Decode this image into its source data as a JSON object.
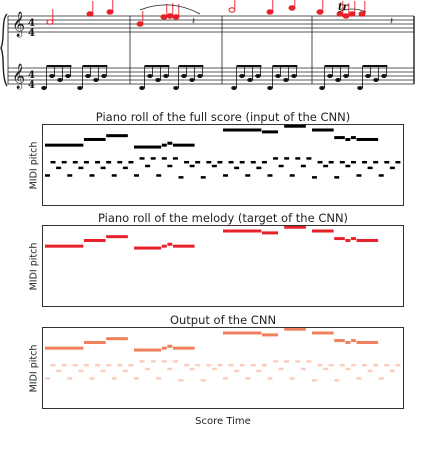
{
  "score": {
    "time_signature_top": "4",
    "time_signature_bottom": "4",
    "trill_mark": "tr",
    "melody_color": "#e8202a",
    "accompaniment_color": "#111111"
  },
  "panels": [
    {
      "title": "Piano roll of the full score (input of the CNN)",
      "ylabel": "MIDI pitch",
      "kind": "full"
    },
    {
      "title": "Piano roll of the melody (target of the CNN)",
      "ylabel": "MIDI pitch",
      "kind": "melody"
    },
    {
      "title": "Output of the CNN",
      "ylabel": "MIDI pitch",
      "kind": "output"
    }
  ],
  "xlabel": "Score Time",
  "colors": {
    "full": "#000000",
    "melody": "#e8202a",
    "output_strong": "#f07f5c",
    "output_weak": "#f9c9b5"
  },
  "chart_data": {
    "type": "heatmap",
    "xlabel": "Score Time",
    "ylabel": "MIDI pitch",
    "time_range": [
      0,
      64
    ],
    "pitch_range": [
      46,
      84
    ],
    "melody_notes": [
      {
        "start": 0,
        "end": 7,
        "pitch": 76
      },
      {
        "start": 7,
        "end": 11,
        "pitch": 79
      },
      {
        "start": 11,
        "end": 15,
        "pitch": 81
      },
      {
        "start": 16,
        "end": 21,
        "pitch": 75
      },
      {
        "start": 21,
        "end": 22,
        "pitch": 76
      },
      {
        "start": 22,
        "end": 23,
        "pitch": 77
      },
      {
        "start": 23,
        "end": 27,
        "pitch": 76
      },
      {
        "start": 32,
        "end": 39,
        "pitch": 84
      },
      {
        "start": 39,
        "end": 42,
        "pitch": 83
      },
      {
        "start": 43,
        "end": 47,
        "pitch": 86
      },
      {
        "start": 48,
        "end": 52,
        "pitch": 84
      },
      {
        "start": 52,
        "end": 54,
        "pitch": 80
      },
      {
        "start": 54,
        "end": 55,
        "pitch": 79
      },
      {
        "start": 55,
        "end": 56,
        "pitch": 80
      },
      {
        "start": 56,
        "end": 60,
        "pitch": 79
      }
    ],
    "accompaniment_notes": [
      {
        "start": 0,
        "end": 1,
        "pitch": 60
      },
      {
        "start": 1,
        "end": 2,
        "pitch": 67
      },
      {
        "start": 2,
        "end": 3,
        "pitch": 64
      },
      {
        "start": 3,
        "end": 4,
        "pitch": 67
      },
      {
        "start": 4,
        "end": 5,
        "pitch": 60
      },
      {
        "start": 5,
        "end": 6,
        "pitch": 67
      },
      {
        "start": 6,
        "end": 7,
        "pitch": 64
      },
      {
        "start": 7,
        "end": 8,
        "pitch": 67
      },
      {
        "start": 8,
        "end": 9,
        "pitch": 60
      },
      {
        "start": 9,
        "end": 10,
        "pitch": 67
      },
      {
        "start": 10,
        "end": 11,
        "pitch": 64
      },
      {
        "start": 11,
        "end": 12,
        "pitch": 67
      },
      {
        "start": 12,
        "end": 13,
        "pitch": 60
      },
      {
        "start": 13,
        "end": 14,
        "pitch": 67
      },
      {
        "start": 14,
        "end": 15,
        "pitch": 64
      },
      {
        "start": 15,
        "end": 16,
        "pitch": 67
      },
      {
        "start": 16,
        "end": 17,
        "pitch": 60
      },
      {
        "start": 17,
        "end": 18,
        "pitch": 69
      },
      {
        "start": 18,
        "end": 19,
        "pitch": 65
      },
      {
        "start": 19,
        "end": 20,
        "pitch": 69
      },
      {
        "start": 20,
        "end": 21,
        "pitch": 60
      },
      {
        "start": 21,
        "end": 22,
        "pitch": 69
      },
      {
        "start": 22,
        "end": 23,
        "pitch": 65
      },
      {
        "start": 23,
        "end": 24,
        "pitch": 69
      },
      {
        "start": 24,
        "end": 25,
        "pitch": 59
      },
      {
        "start": 25,
        "end": 26,
        "pitch": 67
      },
      {
        "start": 26,
        "end": 27,
        "pitch": 65
      },
      {
        "start": 27,
        "end": 28,
        "pitch": 67
      },
      {
        "start": 28,
        "end": 29,
        "pitch": 59
      },
      {
        "start": 29,
        "end": 30,
        "pitch": 67
      },
      {
        "start": 30,
        "end": 31,
        "pitch": 65
      },
      {
        "start": 31,
        "end": 32,
        "pitch": 67
      },
      {
        "start": 32,
        "end": 33,
        "pitch": 60
      },
      {
        "start": 33,
        "end": 34,
        "pitch": 67
      },
      {
        "start": 34,
        "end": 35,
        "pitch": 64
      },
      {
        "start": 35,
        "end": 36,
        "pitch": 67
      },
      {
        "start": 36,
        "end": 37,
        "pitch": 60
      },
      {
        "start": 37,
        "end": 38,
        "pitch": 67
      },
      {
        "start": 38,
        "end": 39,
        "pitch": 64
      },
      {
        "start": 39,
        "end": 40,
        "pitch": 67
      },
      {
        "start": 40,
        "end": 41,
        "pitch": 60
      },
      {
        "start": 41,
        "end": 42,
        "pitch": 69
      },
      {
        "start": 42,
        "end": 43,
        "pitch": 65
      },
      {
        "start": 43,
        "end": 44,
        "pitch": 69
      },
      {
        "start": 44,
        "end": 45,
        "pitch": 60
      },
      {
        "start": 45,
        "end": 46,
        "pitch": 69
      },
      {
        "start": 46,
        "end": 47,
        "pitch": 65
      },
      {
        "start": 47,
        "end": 48,
        "pitch": 69
      },
      {
        "start": 48,
        "end": 49,
        "pitch": 59
      },
      {
        "start": 49,
        "end": 50,
        "pitch": 67
      },
      {
        "start": 50,
        "end": 51,
        "pitch": 65
      },
      {
        "start": 51,
        "end": 52,
        "pitch": 67
      },
      {
        "start": 52,
        "end": 53,
        "pitch": 59
      },
      {
        "start": 53,
        "end": 54,
        "pitch": 67
      },
      {
        "start": 54,
        "end": 55,
        "pitch": 65
      },
      {
        "start": 55,
        "end": 56,
        "pitch": 67
      },
      {
        "start": 56,
        "end": 57,
        "pitch": 60
      },
      {
        "start": 57,
        "end": 58,
        "pitch": 67
      },
      {
        "start": 58,
        "end": 59,
        "pitch": 64
      },
      {
        "start": 59,
        "end": 60,
        "pitch": 67
      },
      {
        "start": 60,
        "end": 61,
        "pitch": 60
      },
      {
        "start": 61,
        "end": 62,
        "pitch": 67
      },
      {
        "start": 62,
        "end": 63,
        "pitch": 64
      },
      {
        "start": 63,
        "end": 64,
        "pitch": 67
      }
    ]
  }
}
